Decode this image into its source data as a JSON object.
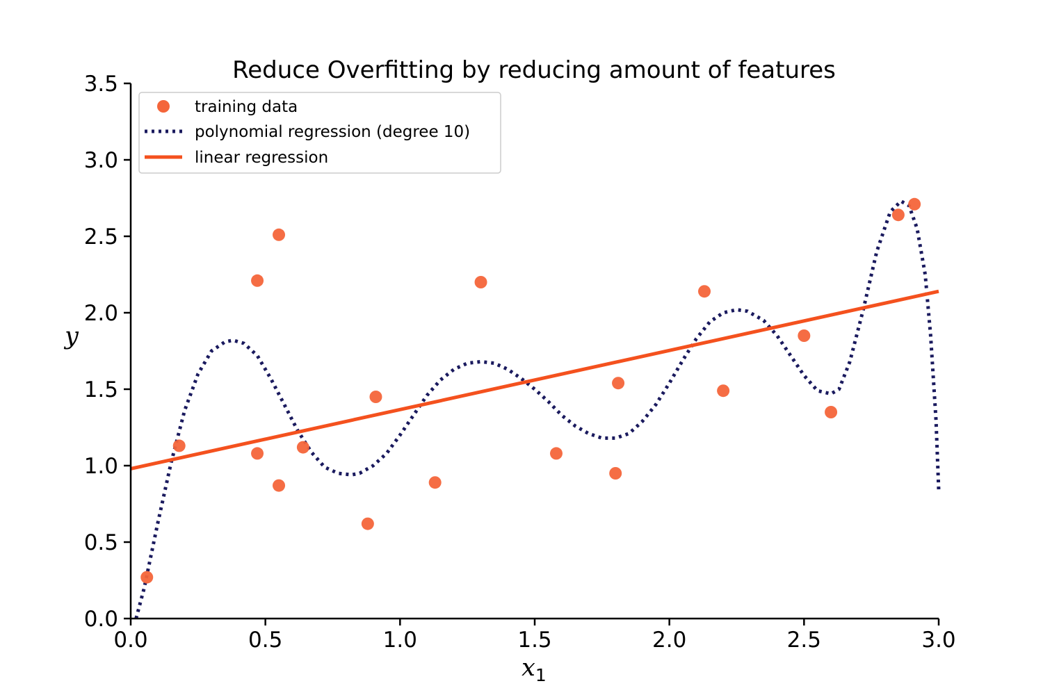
{
  "chart_data": {
    "type": "scatter",
    "title": "Reduce Overfitting by reducing amount of features",
    "xlabel": "x",
    "xlabel_subscript": "1",
    "ylabel": "y",
    "xlim": [
      0.0,
      3.0
    ],
    "ylim": [
      0.0,
      3.5
    ],
    "xticks": [
      0.0,
      0.5,
      1.0,
      1.5,
      2.0,
      2.5,
      3.0
    ],
    "yticks": [
      0.0,
      0.5,
      1.0,
      1.5,
      2.0,
      2.5,
      3.0,
      3.5
    ],
    "xtick_labels": [
      "0.0",
      "0.5",
      "1.0",
      "1.5",
      "2.0",
      "2.5",
      "3.0"
    ],
    "ytick_labels": [
      "0.0",
      "0.5",
      "1.0",
      "1.5",
      "2.0",
      "2.5",
      "3.0",
      "3.5"
    ],
    "grid": false,
    "legend_position": "top-left",
    "colors": {
      "training": "#f4653a",
      "polynomial": "#1a1a5e",
      "linear": "#f4511e"
    },
    "series": [
      {
        "name": "training data",
        "kind": "scatter",
        "x": [
          0.06,
          0.18,
          0.47,
          0.47,
          0.55,
          0.55,
          0.64,
          0.88,
          0.91,
          1.13,
          1.3,
          1.58,
          1.8,
          1.81,
          2.13,
          2.2,
          2.5,
          2.6,
          2.85,
          2.91
        ],
        "y": [
          0.27,
          1.13,
          2.21,
          1.08,
          0.87,
          2.51,
          1.12,
          0.62,
          1.45,
          0.89,
          2.2,
          1.08,
          0.95,
          1.54,
          2.14,
          1.49,
          1.85,
          1.35,
          2.64,
          2.71
        ]
      },
      {
        "name": "polynomial regression (degree 10)",
        "kind": "line",
        "style": "dotted",
        "x": [
          0.02,
          0.05,
          0.1,
          0.15,
          0.2,
          0.25,
          0.3,
          0.35,
          0.38,
          0.42,
          0.47,
          0.52,
          0.57,
          0.62,
          0.67,
          0.72,
          0.77,
          0.82,
          0.85,
          0.9,
          0.95,
          1.0,
          1.05,
          1.1,
          1.15,
          1.2,
          1.25,
          1.3,
          1.35,
          1.4,
          1.45,
          1.5,
          1.55,
          1.6,
          1.65,
          1.7,
          1.75,
          1.8,
          1.85,
          1.9,
          1.95,
          2.0,
          2.05,
          2.1,
          2.15,
          2.2,
          2.25,
          2.29,
          2.35,
          2.4,
          2.45,
          2.5,
          2.55,
          2.6,
          2.63,
          2.67,
          2.72,
          2.77,
          2.82,
          2.86,
          2.89,
          2.92,
          2.95,
          2.97,
          2.99,
          3.0
        ],
        "y": [
          0.0,
          0.2,
          0.62,
          1.02,
          1.36,
          1.6,
          1.75,
          1.81,
          1.82,
          1.8,
          1.72,
          1.57,
          1.4,
          1.23,
          1.09,
          0.99,
          0.95,
          0.94,
          0.95,
          1.0,
          1.08,
          1.2,
          1.33,
          1.46,
          1.56,
          1.63,
          1.67,
          1.68,
          1.67,
          1.63,
          1.57,
          1.5,
          1.42,
          1.33,
          1.26,
          1.21,
          1.18,
          1.18,
          1.21,
          1.29,
          1.4,
          1.54,
          1.69,
          1.83,
          1.94,
          2.0,
          2.02,
          2.01,
          1.95,
          1.85,
          1.72,
          1.59,
          1.49,
          1.47,
          1.5,
          1.68,
          2.02,
          2.4,
          2.66,
          2.73,
          2.7,
          2.55,
          2.25,
          1.85,
          1.3,
          0.84
        ]
      },
      {
        "name": "linear regression",
        "kind": "line",
        "style": "solid",
        "x": [
          0.0,
          3.0
        ],
        "y": [
          0.98,
          2.14
        ]
      }
    ]
  }
}
